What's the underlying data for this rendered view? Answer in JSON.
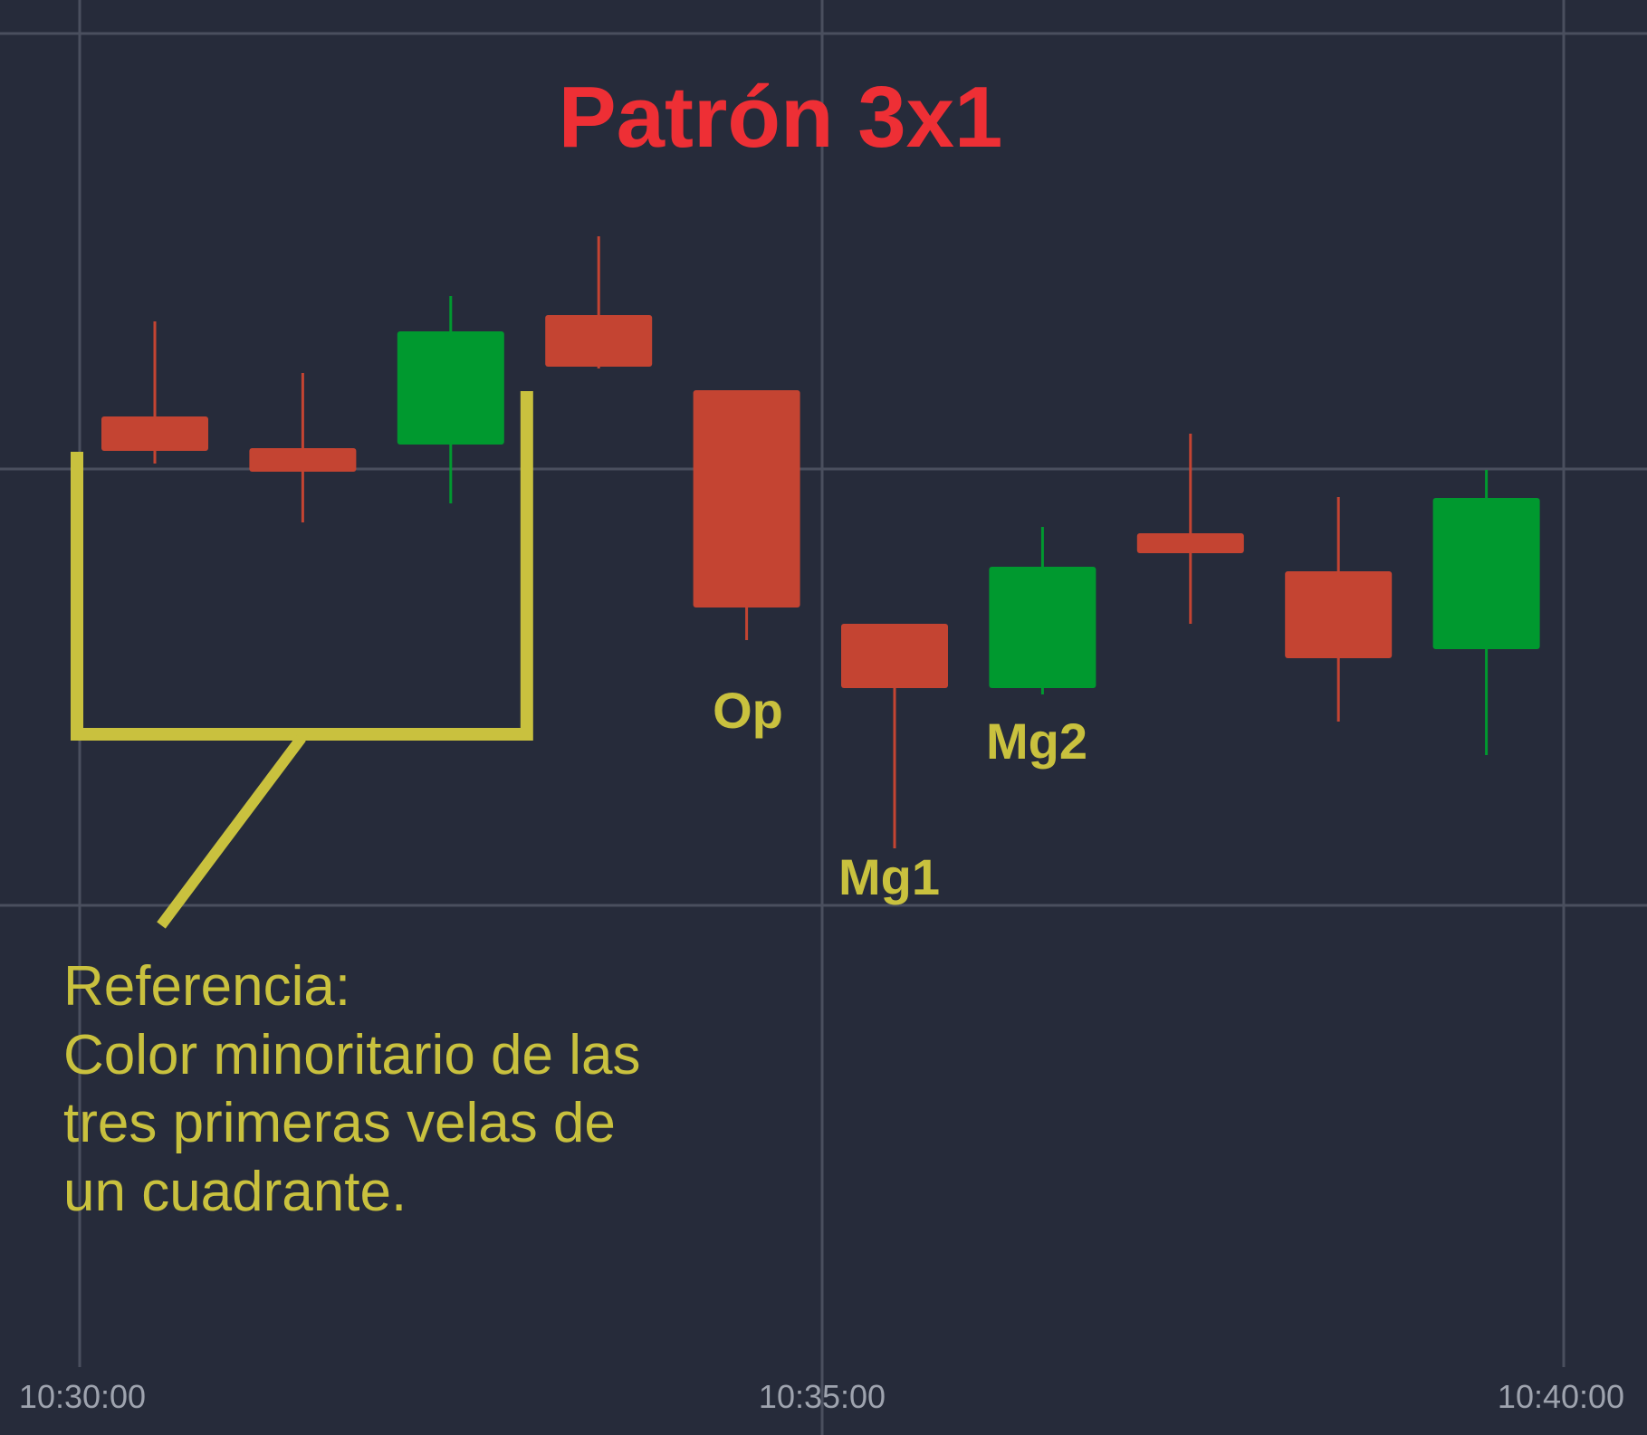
{
  "chart_data": {
    "type": "candlestick",
    "title": "Patrón 3x1",
    "x_ticks": [
      "10:30:00",
      "10:35:00",
      "10:40:00"
    ],
    "y_range": [
      0,
      100
    ],
    "grid": true,
    "colors": {
      "background": "#262b3a",
      "grid": "#4a4f5e",
      "bullish": "#00992f",
      "bearish": "#c44432",
      "annotation": "#c9c13e",
      "title": "#ee2f35"
    },
    "candles": [
      {
        "index": 0,
        "direction": "down",
        "open": 74.0,
        "close": 70.2,
        "high": 84.5,
        "low": 68.8
      },
      {
        "index": 1,
        "direction": "down",
        "open": 70.5,
        "close": 67.9,
        "high": 78.8,
        "low": 62.3
      },
      {
        "index": 2,
        "direction": "up",
        "open": 70.9,
        "close": 83.4,
        "high": 87.3,
        "low": 64.4
      },
      {
        "index": 3,
        "direction": "down",
        "open": 85.2,
        "close": 79.5,
        "high": 93.9,
        "low": 79.3
      },
      {
        "index": 4,
        "direction": "down",
        "open": 76.9,
        "close": 52.9,
        "high": 76.9,
        "low": 49.3
      },
      {
        "index": 5,
        "direction": "down",
        "open": 51.1,
        "close": 44.0,
        "high": 51.1,
        "low": 26.3
      },
      {
        "index": 6,
        "direction": "up",
        "open": 44.0,
        "close": 57.4,
        "high": 61.8,
        "low": 43.3
      },
      {
        "index": 7,
        "direction": "down",
        "open": 61.1,
        "close": 58.9,
        "high": 72.1,
        "low": 51.1
      },
      {
        "index": 8,
        "direction": "down",
        "open": 56.9,
        "close": 47.3,
        "high": 65.1,
        "low": 40.3
      },
      {
        "index": 9,
        "direction": "up",
        "open": 48.3,
        "close": 65.0,
        "high": 68.1,
        "low": 36.6
      }
    ],
    "annotations": {
      "markers": [
        {
          "label": "Op",
          "candle": 4
        },
        {
          "label": "Mg1",
          "candle": 5
        },
        {
          "label": "Mg2",
          "candle": 6
        }
      ],
      "bracket": {
        "from_candle": 0,
        "to_candle": 2
      },
      "note_lines": [
        "Referencia:",
        "Color minoritario de las",
        "tres primeras velas de",
        "un cuadrante."
      ]
    }
  }
}
